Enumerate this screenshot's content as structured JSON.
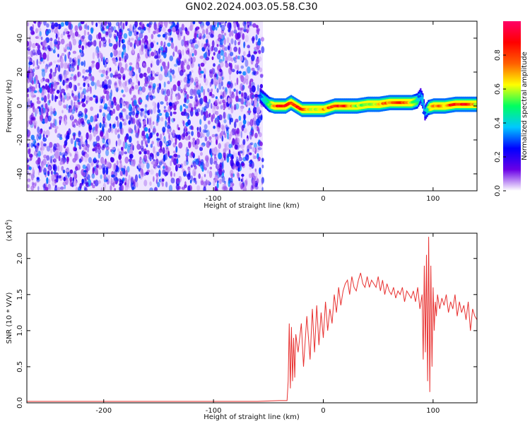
{
  "figure": {
    "title": "GN02.2024.003.05.58.C30"
  },
  "chart_data": [
    {
      "type": "heatmap",
      "title": "GN02.2024.003.05.58.C30",
      "xlabel": "Height of straight line (km)",
      "ylabel": "Frequency (Hz)",
      "xlim": [
        -270,
        140
      ],
      "ylim": [
        -50,
        50
      ],
      "xticks": [
        -200,
        -100,
        0,
        100
      ],
      "yticks": [
        -40,
        -20,
        0,
        20,
        40
      ],
      "grid": false,
      "noise_region": {
        "x_range": [
          -270,
          -55
        ],
        "y_range": [
          -50,
          50
        ],
        "amplitude": [
          0.0,
          0.3
        ]
      },
      "signal_trace": {
        "x": [
          -58,
          -50,
          -45,
          -40,
          -35,
          -30,
          -25,
          -20,
          -10,
          0,
          10,
          20,
          30,
          40,
          50,
          60,
          70,
          80,
          85,
          88,
          90,
          92,
          95,
          100,
          110,
          120,
          130,
          140
        ],
        "frequency": [
          6,
          1,
          0,
          0,
          0,
          2,
          0,
          -2,
          -2,
          -2,
          0,
          0,
          0,
          1,
          1,
          2,
          2,
          2,
          3,
          6,
          3,
          -4,
          -1,
          0,
          0,
          1,
          1,
          1
        ],
        "amplitude": [
          0.3,
          0.5,
          0.7,
          0.9,
          0.9,
          0.8,
          0.9,
          0.9,
          0.6,
          0.7,
          0.9,
          0.85,
          0.6,
          0.6,
          0.7,
          0.8,
          0.9,
          0.6,
          0.5,
          0.3,
          0.4,
          0.3,
          0.5,
          0.8,
          0.7,
          0.9,
          0.9,
          0.6
        ]
      },
      "colorbar": {
        "label": "Normalized spectral amplitude",
        "range": [
          0,
          1
        ],
        "ticks": [
          0.0,
          0.2,
          0.4,
          0.6,
          0.8
        ],
        "tick_labels": [
          "0.0",
          "0.2",
          "0.4",
          "0.6",
          "0.8"
        ],
        "colors": [
          "#ffffff",
          "#6a00e6",
          "#0000ff",
          "#00c8ff",
          "#00ff60",
          "#ffff00",
          "#ff6000",
          "#ff0000",
          "#ff0066"
        ]
      }
    },
    {
      "type": "line",
      "xlabel": "Height of straight line (km)",
      "ylabel": "SNR (10 * V/V)",
      "multiplier_label": "(x10",
      "multiplier_exp": "4",
      "multiplier_close": ")",
      "xlim": [
        -270,
        140
      ],
      "ylim": [
        0,
        2.35
      ],
      "xticks": [
        -200,
        -100,
        0,
        100
      ],
      "yticks": [
        0.0,
        0.5,
        1.0,
        1.5,
        2.0
      ],
      "ytick_labels": [
        "0.0",
        "0.5",
        "1.0",
        "1.5",
        "2.0"
      ],
      "grid": false,
      "color": "#e8302f",
      "x": [
        -270,
        -250,
        -200,
        -150,
        -100,
        -60,
        -40,
        -33,
        -32,
        -31,
        -30,
        -29,
        -28,
        -27,
        -26,
        -25,
        -23,
        -20,
        -18,
        -15,
        -12,
        -10,
        -8,
        -6,
        -4,
        -2,
        0,
        2,
        4,
        6,
        8,
        10,
        12,
        14,
        16,
        18,
        20,
        22,
        24,
        26,
        28,
        30,
        32,
        34,
        36,
        38,
        40,
        42,
        44,
        46,
        48,
        50,
        52,
        54,
        56,
        58,
        60,
        62,
        64,
        66,
        68,
        70,
        72,
        74,
        76,
        78,
        80,
        82,
        84,
        86,
        88,
        90,
        91,
        92,
        93,
        94,
        95,
        96,
        97,
        98,
        99,
        100,
        101,
        102,
        103,
        104,
        106,
        108,
        110,
        112,
        114,
        116,
        118,
        120,
        122,
        124,
        126,
        128,
        130,
        132,
        134,
        136,
        138,
        140
      ],
      "y": [
        0.02,
        0.02,
        0.02,
        0.02,
        0.02,
        0.02,
        0.03,
        0.03,
        0.3,
        1.1,
        0.2,
        1.05,
        0.3,
        0.9,
        0.35,
        0.95,
        0.7,
        1.1,
        0.5,
        1.2,
        0.6,
        1.3,
        0.7,
        1.35,
        0.8,
        1.25,
        0.9,
        1.4,
        1.0,
        1.3,
        1.1,
        1.5,
        1.25,
        1.6,
        1.35,
        1.55,
        1.65,
        1.7,
        1.5,
        1.75,
        1.6,
        1.55,
        1.7,
        1.8,
        1.65,
        1.6,
        1.75,
        1.6,
        1.7,
        1.65,
        1.6,
        1.75,
        1.55,
        1.7,
        1.5,
        1.65,
        1.55,
        1.5,
        1.6,
        1.45,
        1.55,
        1.5,
        1.6,
        1.4,
        1.55,
        1.5,
        1.45,
        1.55,
        1.4,
        1.6,
        1.3,
        1.5,
        0.6,
        1.9,
        0.7,
        2.05,
        0.3,
        2.3,
        0.15,
        1.9,
        0.5,
        1.6,
        1.0,
        1.4,
        1.2,
        1.5,
        1.3,
        1.45,
        1.35,
        1.5,
        1.25,
        1.4,
        1.3,
        1.5,
        1.2,
        1.4,
        1.25,
        1.35,
        1.15,
        1.4,
        1.0,
        1.3,
        1.2,
        1.15
      ]
    }
  ]
}
